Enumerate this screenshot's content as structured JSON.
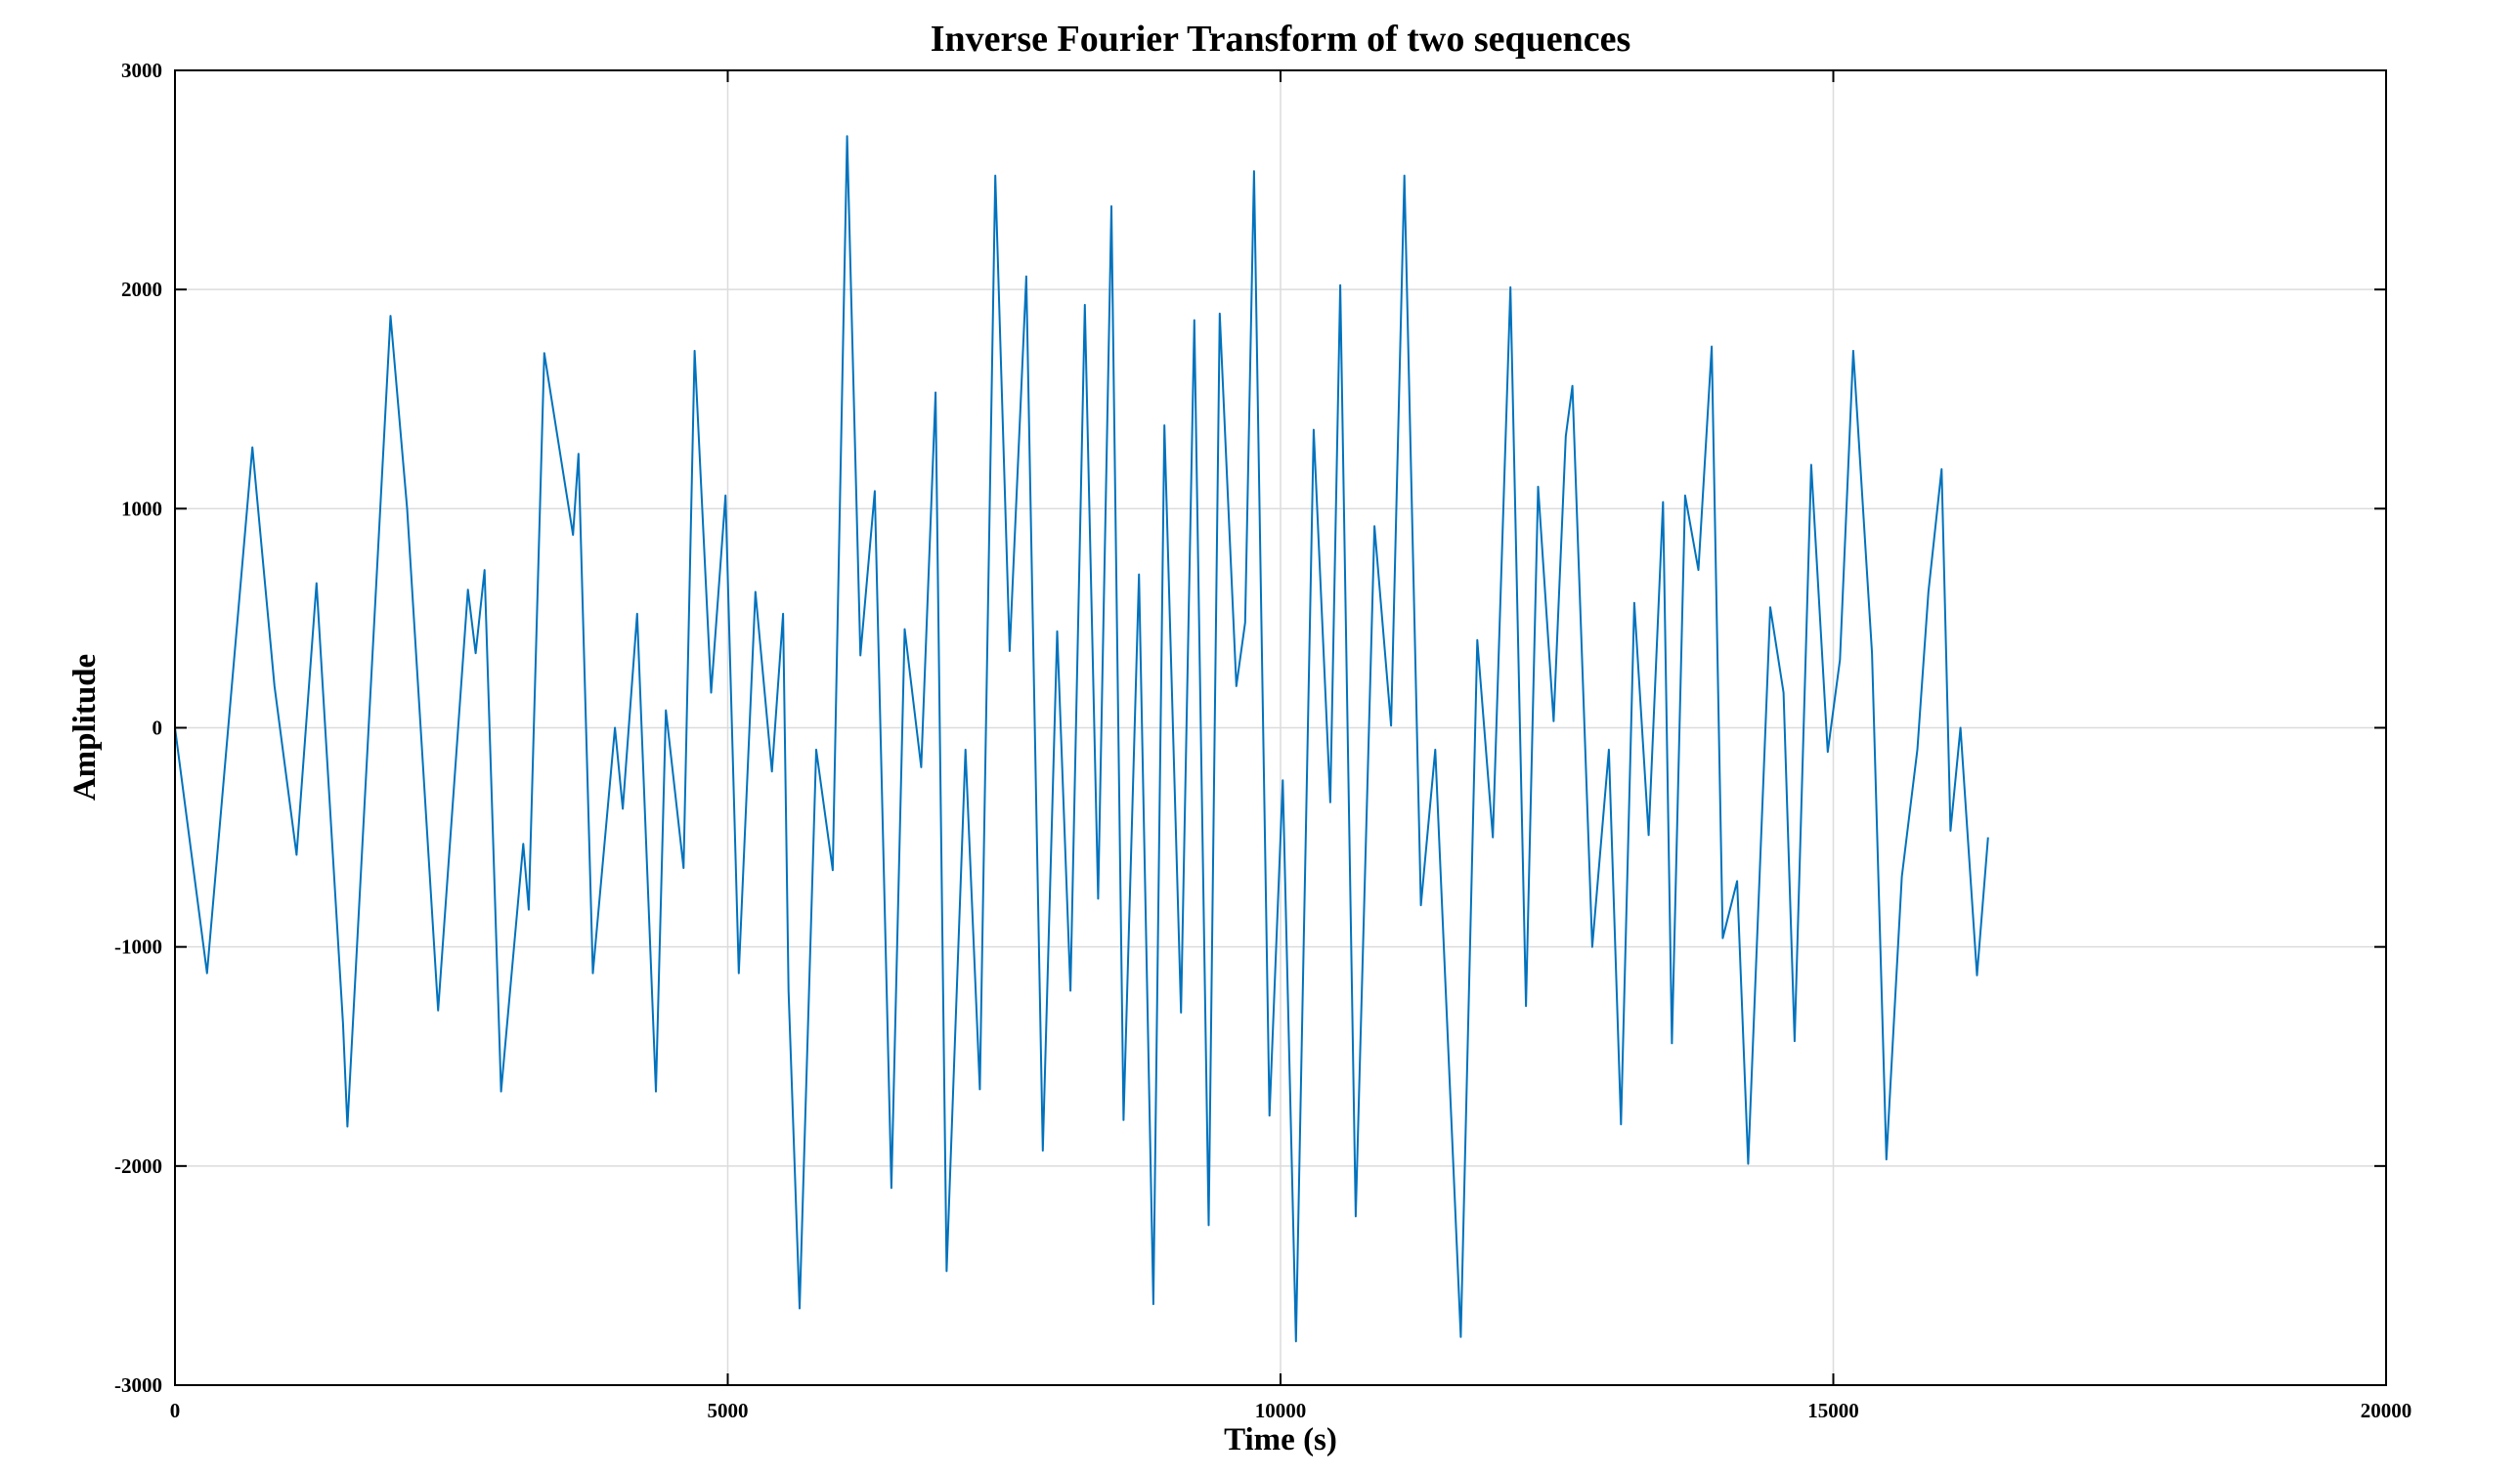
{
  "chart_data": {
    "type": "line",
    "title": "Inverse Fourier Transform of two sequences",
    "xlabel": "Time (s)",
    "ylabel": "Amplitude",
    "xlim": [
      0,
      20000
    ],
    "ylim": [
      -3000,
      3000
    ],
    "xticks": [
      0,
      5000,
      10000,
      15000,
      20000
    ],
    "yticks": [
      -3000,
      -2000,
      -1000,
      0,
      1000,
      2000,
      3000
    ],
    "grid": true,
    "colors": {
      "series": "#0072BD",
      "grid": "#dcdcdc",
      "axis": "#000000"
    },
    "series": [
      {
        "color": "#0072BD",
        "x": [
          0,
          290,
          700,
          900,
          1100,
          1280,
          1520,
          1560,
          1950,
          2100,
          2380,
          2650,
          2720,
          2800,
          2950,
          3150,
          3200,
          3340,
          3600,
          3650,
          3780,
          3980,
          4050,
          4180,
          4350,
          4440,
          4600,
          4700,
          4850,
          4980,
          5100,
          5250,
          5400,
          5500,
          5550,
          5650,
          5800,
          5950,
          6080,
          6200,
          6330,
          6480,
          6600,
          6750,
          6880,
          6980,
          7150,
          7280,
          7420,
          7550,
          7700,
          7850,
          7980,
          8100,
          8230,
          8350,
          8470,
          8580,
          8720,
          8850,
          8950,
          9100,
          9220,
          9350,
          9450,
          9600,
          9680,
          9760,
          9900,
          10020,
          10140,
          10300,
          10450,
          10540,
          10680,
          10850,
          11000,
          11120,
          11270,
          11400,
          11630,
          11780,
          11920,
          12080,
          12220,
          12330,
          12470,
          12580,
          12640,
          12820,
          12970,
          13080,
          13200,
          13330,
          13460,
          13540,
          13660,
          13780,
          13900,
          14000,
          14130,
          14230,
          14430,
          14550,
          14650,
          14800,
          14950,
          15060,
          15180,
          15350,
          15480,
          15620,
          15760,
          15860,
          15980,
          16060,
          16150,
          16300,
          16400
        ],
        "y": [
          0,
          -1120,
          1280,
          190,
          -580,
          660,
          -1350,
          -1820,
          1880,
          1000,
          -1290,
          630,
          340,
          720,
          -1660,
          -530,
          -830,
          1710,
          880,
          1250,
          -1120,
          0,
          -370,
          520,
          -1660,
          80,
          -640,
          1720,
          160,
          1060,
          -1120,
          620,
          -200,
          520,
          -1200,
          -2650,
          -100,
          -650,
          2700,
          330,
          1080,
          -2100,
          450,
          -180,
          1530,
          -2480,
          -100,
          -1650,
          2520,
          350,
          2060,
          -1930,
          440,
          -1200,
          1930,
          -780,
          2380,
          -1790,
          700,
          -2630,
          1380,
          -1300,
          1860,
          -2270,
          1890,
          190,
          480,
          2540,
          -1770,
          -240,
          -2800,
          1360,
          -340,
          2020,
          -2230,
          920,
          10,
          2520,
          -810,
          -100,
          -2780,
          400,
          -500,
          2010,
          -1270,
          1100,
          30,
          1330,
          1560,
          -1000,
          -100,
          -1810,
          570,
          -490,
          1030,
          -1440,
          1060,
          720,
          1740,
          -960,
          -700,
          -1990,
          550,
          160,
          -1430,
          1200,
          -110,
          310,
          1720,
          340,
          -1970,
          -680,
          -100,
          620,
          1180,
          -470,
          0,
          -1130,
          -500
        ]
      }
    ]
  }
}
